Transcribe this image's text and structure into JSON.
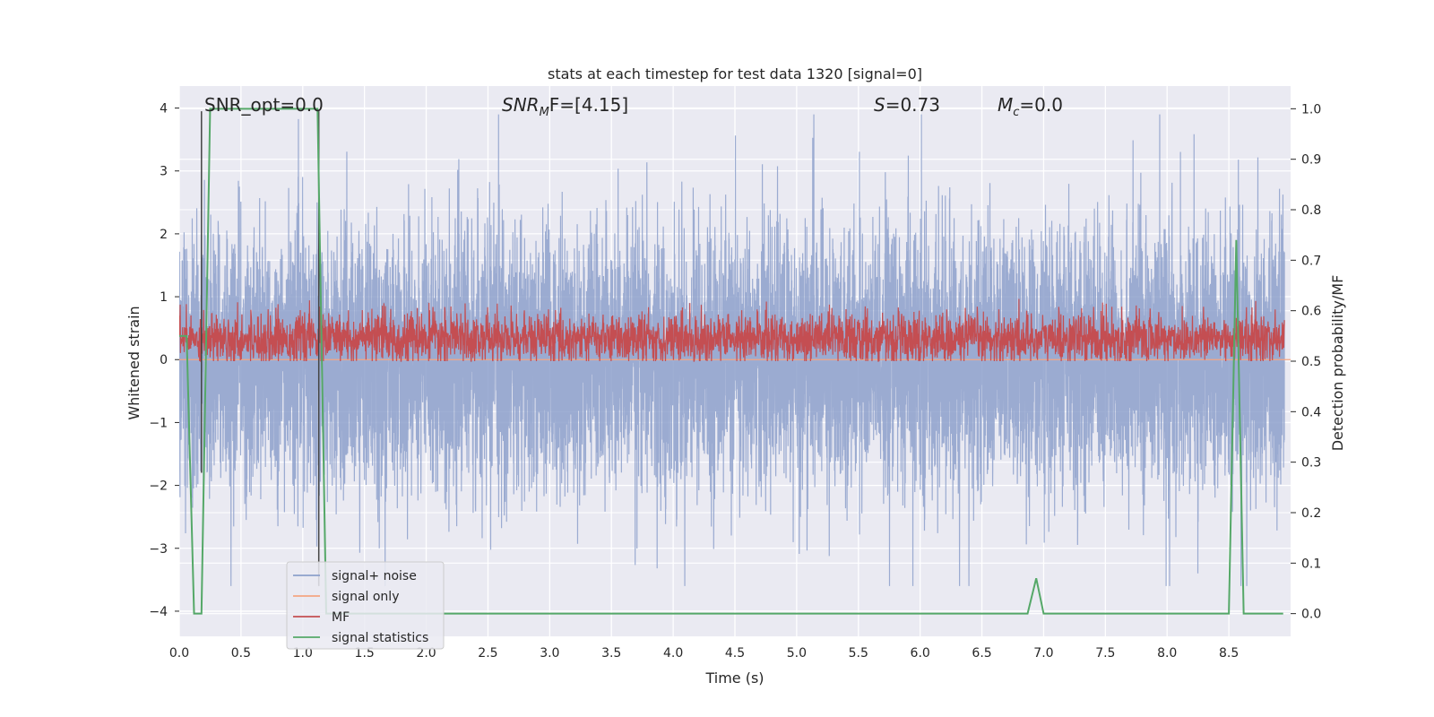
{
  "chart_data": {
    "type": "line",
    "title": "stats at each timestep for test data 1320 [signal=0]",
    "xlabel": "Time (s)",
    "ylabel": "Whitened strain",
    "y2label": "Detection probability/MF",
    "xlim": [
      0.0,
      9.0
    ],
    "ylim": [
      -4.4,
      4.35
    ],
    "y2lim": [
      -0.045,
      1.045
    ],
    "xticks": [
      "0.0",
      "0.5",
      "1.0",
      "1.5",
      "2.0",
      "2.5",
      "3.0",
      "3.5",
      "4.0",
      "4.5",
      "5.0",
      "5.5",
      "6.0",
      "6.5",
      "7.0",
      "7.5",
      "8.0",
      "8.5"
    ],
    "yticks": [
      "4",
      "3",
      "2",
      "1",
      "0",
      "−1",
      "−2",
      "−3",
      "−4"
    ],
    "y2ticks": [
      "1.0",
      "0.9",
      "0.8",
      "0.7",
      "0.6",
      "0.5",
      "0.4",
      "0.3",
      "0.2",
      "0.1",
      "0.0"
    ],
    "annotations": {
      "snr_opt": "SNR_opt=0.0",
      "snr_mf_name": "SNR",
      "snr_mf_sub": "M",
      "snr_mf_rest": "F=[4.15]",
      "s_name": "S",
      "s_rest": "=0.73",
      "mc_name": "M",
      "mc_sub": "c",
      "mc_rest": "=0.0"
    },
    "legend": {
      "position": "lower-left",
      "entries": [
        {
          "label": "signal+ noise",
          "color": "#8da0cb"
        },
        {
          "label": "signal only",
          "color": "#f4a582"
        },
        {
          "label": "MF",
          "color": "#c44e52"
        },
        {
          "label": "signal statistics",
          "color": "#55a868"
        }
      ]
    },
    "series": [
      {
        "name": "signal+ noise",
        "axis": "left",
        "color": "#8da0cb",
        "description_points": {
          "sample_rate": 1000,
          "amplitude_range": [
            -3.6,
            3.9
          ]
        }
      },
      {
        "name": "signal only",
        "axis": "left",
        "color": "#f4a582",
        "x": [
          0.0,
          9.0
        ],
        "y": [
          0.0,
          0.0
        ]
      },
      {
        "name": "MF",
        "axis": "right",
        "color": "#c44e52",
        "value_range": [
          0.5,
          0.63
        ]
      },
      {
        "name": "signal statistics",
        "axis": "right",
        "color": "#55a868",
        "x": [
          0.0,
          0.06,
          0.12,
          0.18,
          0.25,
          1.06,
          1.12,
          1.19,
          6.87,
          6.94,
          7.0,
          8.5,
          8.56,
          8.62,
          8.94
        ],
        "y": [
          0.55,
          0.55,
          0.0,
          0.0,
          1.0,
          1.0,
          1.0,
          0.0,
          0.0,
          0.07,
          0.0,
          0.0,
          0.74,
          0.0,
          0.0
        ]
      }
    ],
    "vlines": [
      {
        "x": 0.18,
        "y": [
          -1.8,
          3.95
        ],
        "color": "#444444"
      },
      {
        "x": 1.13,
        "y": [
          -3.6,
          3.95
        ],
        "color": "#444444"
      }
    ],
    "grid": true
  }
}
